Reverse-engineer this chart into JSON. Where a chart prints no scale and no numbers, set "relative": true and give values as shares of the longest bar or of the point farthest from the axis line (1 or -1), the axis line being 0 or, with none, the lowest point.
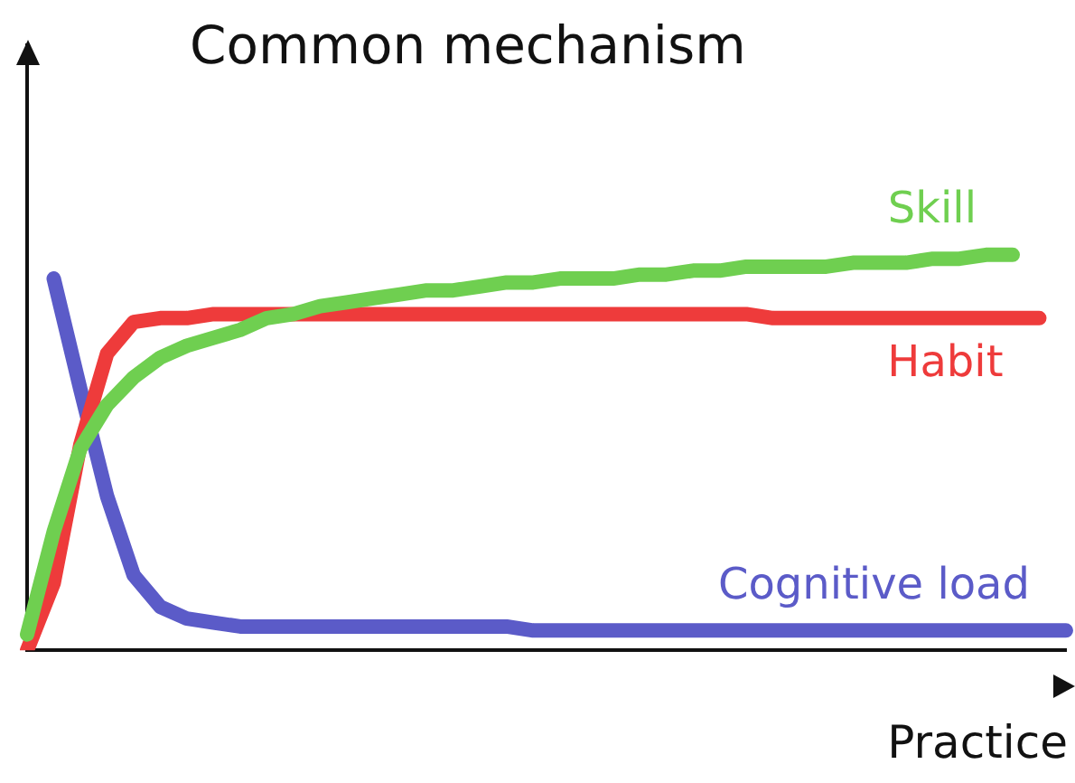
{
  "chart_data": {
    "type": "line",
    "title": "Common mechanism",
    "xlabel": "Practice",
    "relative": true,
    "marker": "none",
    "legend": false,
    "grid": false,
    "categories": [
      null,
      null,
      null,
      null,
      null,
      null,
      null,
      null,
      null,
      null,
      null,
      null,
      null,
      null,
      null,
      null,
      null,
      null,
      null,
      null,
      null,
      null,
      null,
      null,
      null,
      null,
      null,
      null,
      null,
      null,
      null,
      null,
      null,
      null,
      null,
      null,
      null,
      null,
      null,
      null
    ],
    "series": [
      {
        "name": "Skill",
        "color": "#6fcf50",
        "values": [
          0.04,
          0.3,
          0.51,
          0.62,
          0.69,
          0.74,
          0.77,
          0.79,
          0.81,
          0.84,
          0.85,
          0.87,
          0.88,
          0.89,
          0.9,
          0.91,
          0.91,
          0.92,
          0.93,
          0.93,
          0.94,
          0.94,
          0.94,
          0.95,
          0.95,
          0.96,
          0.96,
          0.97,
          0.97,
          0.97,
          0.97,
          0.98,
          0.98,
          0.98,
          0.99,
          0.99,
          1,
          1,
          null,
          null
        ]
      },
      {
        "name": "Habit",
        "color": "#ee3b3b",
        "values": [
          0,
          0.17,
          0.52,
          0.75,
          0.83,
          0.84,
          0.84,
          0.85,
          0.85,
          0.85,
          0.85,
          0.85,
          0.85,
          0.85,
          0.85,
          0.85,
          0.85,
          0.85,
          0.85,
          0.85,
          0.85,
          0.85,
          0.85,
          0.85,
          0.85,
          0.85,
          0.85,
          0.85,
          0.84,
          0.84,
          0.84,
          0.84,
          0.84,
          0.84,
          0.84,
          0.84,
          0.84,
          0.84,
          0.84,
          null
        ]
      },
      {
        "name": "Cognitive load",
        "color": "#5b5bc8",
        "values": [
          null,
          0.94,
          0.66,
          0.39,
          0.19,
          0.11,
          0.08,
          0.07,
          0.06,
          0.06,
          0.06,
          0.06,
          0.06,
          0.06,
          0.06,
          0.06,
          0.06,
          0.06,
          0.06,
          0.05,
          0.05,
          0.05,
          0.05,
          0.05,
          0.05,
          0.05,
          0.05,
          0.05,
          0.05,
          0.05,
          0.05,
          0.05,
          0.05,
          0.05,
          0.05,
          0.05,
          0.05,
          0.05,
          0.05,
          0.05
        ]
      }
    ]
  }
}
